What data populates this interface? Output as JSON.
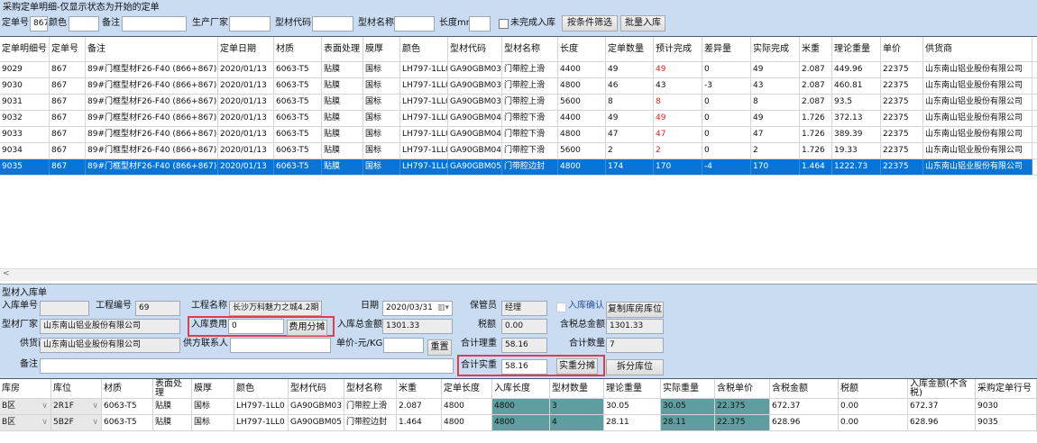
{
  "title": "采购定单明细-仅显示状态为开始的定单",
  "filters": {
    "order_no_label": "定单号",
    "order_no": "867",
    "color_label": "颜色",
    "color": "",
    "remark_label": "备注",
    "remark": "",
    "maker_label": "生产厂家",
    "maker": "",
    "code_label": "型材代码",
    "code": "",
    "name_label": "型材名称",
    "name": "",
    "length_label": "长度mm",
    "length": "",
    "unfinished_label": "未完成入库",
    "filter_btn": "按条件筛选",
    "batch_btn": "批量入库"
  },
  "top_table": {
    "headers": [
      "定单明细号",
      "定单号",
      "备注",
      "定单日期",
      "材质",
      "表面处理",
      "膜厚",
      "颜色",
      "型材代码",
      "型材名称",
      "长度",
      "定单数量",
      "预计完成",
      "差异量",
      "实际完成",
      "米重",
      "理论重量",
      "单价",
      "供货商"
    ],
    "selected_index": 6,
    "red_column": 12,
    "rows": [
      [
        "9029",
        "867",
        "89#门框型材F26-F40 (866+867)",
        "2020/01/13",
        "6063-T5",
        "贴膜",
        "国标",
        "LH797-1LL0",
        "GA90GBM03",
        "门带腔上滑",
        "4400",
        "49",
        "49",
        "0",
        "49",
        "2.087",
        "449.96",
        "22375",
        "山东南山铝业股份有限公司"
      ],
      [
        "9030",
        "867",
        "89#门框型材F26-F40 (866+867)",
        "2020/01/13",
        "6063-T5",
        "贴膜",
        "国标",
        "LH797-1LL0",
        "GA90GBM03",
        "门带腔上滑",
        "4800",
        "46",
        "43",
        "-3",
        "43",
        "2.087",
        "460.81",
        "22375",
        "山东南山铝业股份有限公司"
      ],
      [
        "9031",
        "867",
        "89#门框型材F26-F40 (866+867)",
        "2020/01/13",
        "6063-T5",
        "贴膜",
        "国标",
        "LH797-1LL0",
        "GA90GBM03",
        "门带腔上滑",
        "5600",
        "8",
        "8",
        "0",
        "8",
        "2.087",
        "93.5",
        "22375",
        "山东南山铝业股份有限公司"
      ],
      [
        "9032",
        "867",
        "89#门框型材F26-F40 (866+867)",
        "2020/01/13",
        "6063-T5",
        "贴膜",
        "国标",
        "LH797-1LL0",
        "GA90GBM04",
        "门带腔下滑",
        "4400",
        "49",
        "49",
        "0",
        "49",
        "1.726",
        "372.13",
        "22375",
        "山东南山铝业股份有限公司"
      ],
      [
        "9033",
        "867",
        "89#门框型材F26-F40 (866+867)",
        "2020/01/13",
        "6063-T5",
        "贴膜",
        "国标",
        "LH797-1LL0",
        "GA90GBM04",
        "门带腔下滑",
        "4800",
        "47",
        "47",
        "0",
        "47",
        "1.726",
        "389.39",
        "22375",
        "山东南山铝业股份有限公司"
      ],
      [
        "9034",
        "867",
        "89#门框型材F26-F40 (866+867)",
        "2020/01/13",
        "6063-T5",
        "贴膜",
        "国标",
        "LH797-1LL0",
        "GA90GBM04",
        "门带腔下滑",
        "5600",
        "2",
        "2",
        "0",
        "2",
        "1.726",
        "19.33",
        "22375",
        "山东南山铝业股份有限公司"
      ],
      [
        "9035",
        "867",
        "89#门框型材F26-F40 (866+867)",
        "2020/01/13",
        "6063-T5",
        "贴膜",
        "国标",
        "LH797-1LL0",
        "GA90GBM05",
        "门带腔边封",
        "4800",
        "174",
        "170",
        "-4",
        "170",
        "1.464",
        "1222.73",
        "22375",
        "山东南山铝业股份有限公司"
      ]
    ]
  },
  "form": {
    "section_title": "型材入库单",
    "receipt_no_label": "入库单号",
    "receipt_no": "",
    "project_no_label": "工程编号",
    "project_no": "69",
    "project_name_label": "工程名称",
    "project_name": "长沙万科魅力之城4.2期",
    "date_label": "日期",
    "date": "2020/03/31",
    "keeper_label": "保管员",
    "keeper": "经理",
    "confirm_label": "入库确认",
    "copy_btn": "复制库房库位",
    "maker_label": "型材厂家",
    "maker": "山东南山铝业股份有限公司",
    "fee_label": "入库费用",
    "fee": "0",
    "fee_btn": "费用分摊",
    "total_label": "入库总金额",
    "total": "1301.33",
    "tax_label": "税额",
    "tax": "0.00",
    "total_tax_label": "含税总金额",
    "total_tax": "1301.33",
    "supplier_label": "供货商",
    "supplier": "山东南山铝业股份有限公司",
    "contact_label": "供方联系人",
    "contact": "",
    "unit_price_label": "单价-元/KG",
    "unit_price": "",
    "reset_btn": "重置",
    "theo_weight_label": "合计理重",
    "theo_weight": "58.16",
    "qty_label": "合计数量",
    "qty": "7",
    "remark_label": "备注",
    "remark": "",
    "actual_weight_label": "合计实重",
    "actual_weight": "58.16",
    "actual_btn": "实重分摊",
    "split_btn": "拆分库位"
  },
  "bottom_table": {
    "headers": [
      "库房",
      "库位",
      "材质",
      "表面处理",
      "膜厚",
      "颜色",
      "型材代码",
      "型材名称",
      "米重",
      "定单长度",
      "入库长度",
      "型材数量",
      "理论重量",
      "实际重量",
      "含税单价",
      "含税金额",
      "税额",
      "入库金额(不含税)",
      "采购定单行号"
    ],
    "teal_columns": [
      10,
      11,
      13,
      14
    ],
    "rows": [
      [
        "B区",
        "2R1F",
        "6063-T5",
        "贴膜",
        "国标",
        "LH797-1LL0",
        "GA90GBM03",
        "门带腔上滑",
        "2.087",
        "4800",
        "4800",
        "3",
        "30.05",
        "30.05",
        "22.375",
        "672.37",
        "0.00",
        "672.37",
        "9030"
      ],
      [
        "B区",
        "5B2F",
        "6063-T5",
        "贴膜",
        "国标",
        "LH797-1LL0",
        "GA90GBM05",
        "门带腔边封",
        "1.464",
        "4800",
        "4800",
        "4",
        "28.11",
        "28.11",
        "22.375",
        "628.96",
        "0.00",
        "628.96",
        "9035"
      ]
    ]
  },
  "colors": {
    "selection": "#0a74d6",
    "highlight_box": "#e03c4b",
    "teal": "#5f9ea0",
    "panel": "#c9dcf2"
  }
}
